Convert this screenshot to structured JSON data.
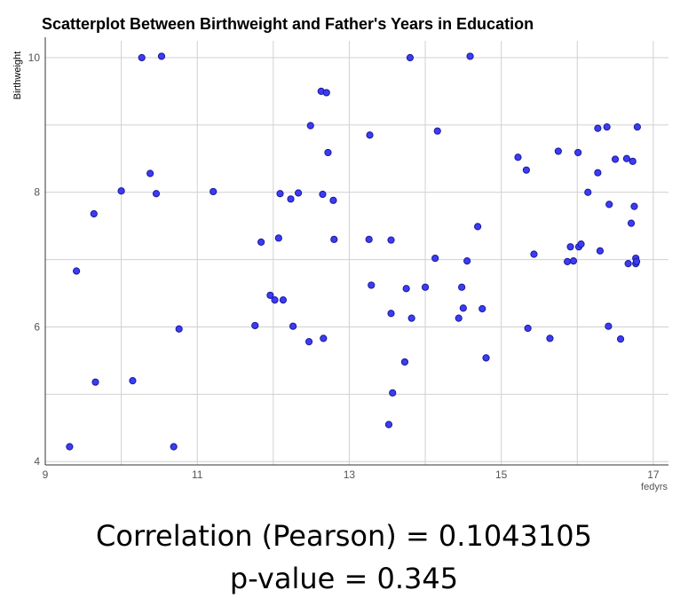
{
  "chart_data": {
    "type": "scatter",
    "title": "Scatterplot Between Birthweight and Father's Years in Education",
    "xlabel": "fedyrs",
    "ylabel": "Birthweight",
    "xlim": [
      9,
      17.2
    ],
    "ylim": [
      3.95,
      10.25
    ],
    "xticks": [
      9,
      11,
      13,
      15,
      17
    ],
    "yticks": [
      4,
      6,
      8,
      10
    ],
    "grid": true,
    "point_color": "#3c3cf5",
    "point_edge_color": "#1a1a99",
    "points": [
      {
        "x": 9.32,
        "y": 4.22
      },
      {
        "x": 9.41,
        "y": 6.83
      },
      {
        "x": 9.64,
        "y": 7.68
      },
      {
        "x": 9.66,
        "y": 5.18
      },
      {
        "x": 10.0,
        "y": 8.02
      },
      {
        "x": 10.15,
        "y": 5.2
      },
      {
        "x": 10.27,
        "y": 10.0
      },
      {
        "x": 10.38,
        "y": 8.28
      },
      {
        "x": 10.46,
        "y": 7.98
      },
      {
        "x": 10.53,
        "y": 10.02
      },
      {
        "x": 10.69,
        "y": 4.22
      },
      {
        "x": 10.76,
        "y": 5.97
      },
      {
        "x": 11.21,
        "y": 8.01
      },
      {
        "x": 11.76,
        "y": 6.02
      },
      {
        "x": 11.84,
        "y": 7.26
      },
      {
        "x": 11.96,
        "y": 6.47
      },
      {
        "x": 12.02,
        "y": 6.4
      },
      {
        "x": 12.07,
        "y": 7.32
      },
      {
        "x": 12.09,
        "y": 7.98
      },
      {
        "x": 12.13,
        "y": 6.4
      },
      {
        "x": 12.23,
        "y": 7.9
      },
      {
        "x": 12.26,
        "y": 6.01
      },
      {
        "x": 12.33,
        "y": 7.99
      },
      {
        "x": 12.47,
        "y": 5.78
      },
      {
        "x": 12.49,
        "y": 8.99
      },
      {
        "x": 12.63,
        "y": 9.5
      },
      {
        "x": 12.66,
        "y": 5.83
      },
      {
        "x": 12.65,
        "y": 7.97
      },
      {
        "x": 12.7,
        "y": 9.48
      },
      {
        "x": 12.72,
        "y": 8.59
      },
      {
        "x": 12.79,
        "y": 7.88
      },
      {
        "x": 12.8,
        "y": 7.3
      },
      {
        "x": 13.26,
        "y": 7.3
      },
      {
        "x": 13.27,
        "y": 8.85
      },
      {
        "x": 13.29,
        "y": 6.62
      },
      {
        "x": 13.52,
        "y": 4.55
      },
      {
        "x": 13.55,
        "y": 7.29
      },
      {
        "x": 13.55,
        "y": 6.2
      },
      {
        "x": 13.57,
        "y": 5.02
      },
      {
        "x": 13.73,
        "y": 5.48
      },
      {
        "x": 13.75,
        "y": 6.57
      },
      {
        "x": 13.8,
        "y": 10.0
      },
      {
        "x": 13.82,
        "y": 6.13
      },
      {
        "x": 14.0,
        "y": 6.59
      },
      {
        "x": 14.13,
        "y": 7.02
      },
      {
        "x": 14.16,
        "y": 8.91
      },
      {
        "x": 14.44,
        "y": 6.13
      },
      {
        "x": 14.48,
        "y": 6.59
      },
      {
        "x": 14.5,
        "y": 6.28
      },
      {
        "x": 14.55,
        "y": 6.98
      },
      {
        "x": 14.59,
        "y": 10.02
      },
      {
        "x": 14.69,
        "y": 7.49
      },
      {
        "x": 14.75,
        "y": 6.27
      },
      {
        "x": 14.8,
        "y": 5.54
      },
      {
        "x": 15.22,
        "y": 8.52
      },
      {
        "x": 15.33,
        "y": 8.33
      },
      {
        "x": 15.35,
        "y": 5.98
      },
      {
        "x": 15.43,
        "y": 7.08
      },
      {
        "x": 15.64,
        "y": 5.83
      },
      {
        "x": 15.75,
        "y": 8.61
      },
      {
        "x": 15.87,
        "y": 6.97
      },
      {
        "x": 15.91,
        "y": 7.19
      },
      {
        "x": 15.95,
        "y": 6.98
      },
      {
        "x": 16.01,
        "y": 8.59
      },
      {
        "x": 16.02,
        "y": 7.19
      },
      {
        "x": 16.05,
        "y": 7.23
      },
      {
        "x": 16.14,
        "y": 8.0
      },
      {
        "x": 16.27,
        "y": 8.29
      },
      {
        "x": 16.27,
        "y": 8.95
      },
      {
        "x": 16.3,
        "y": 7.13
      },
      {
        "x": 16.39,
        "y": 8.97
      },
      {
        "x": 16.41,
        "y": 6.01
      },
      {
        "x": 16.42,
        "y": 7.82
      },
      {
        "x": 16.5,
        "y": 8.49
      },
      {
        "x": 16.57,
        "y": 5.82
      },
      {
        "x": 16.65,
        "y": 8.5
      },
      {
        "x": 16.67,
        "y": 6.94
      },
      {
        "x": 16.71,
        "y": 7.54
      },
      {
        "x": 16.73,
        "y": 8.46
      },
      {
        "x": 16.75,
        "y": 7.79
      },
      {
        "x": 16.77,
        "y": 7.02
      },
      {
        "x": 16.77,
        "y": 6.94
      },
      {
        "x": 16.78,
        "y": 6.97
      },
      {
        "x": 16.79,
        "y": 8.97
      }
    ]
  },
  "stats": {
    "correlation": "Correlation (Pearson) = 0.1043105",
    "p_value": "p-value = 0.345"
  }
}
